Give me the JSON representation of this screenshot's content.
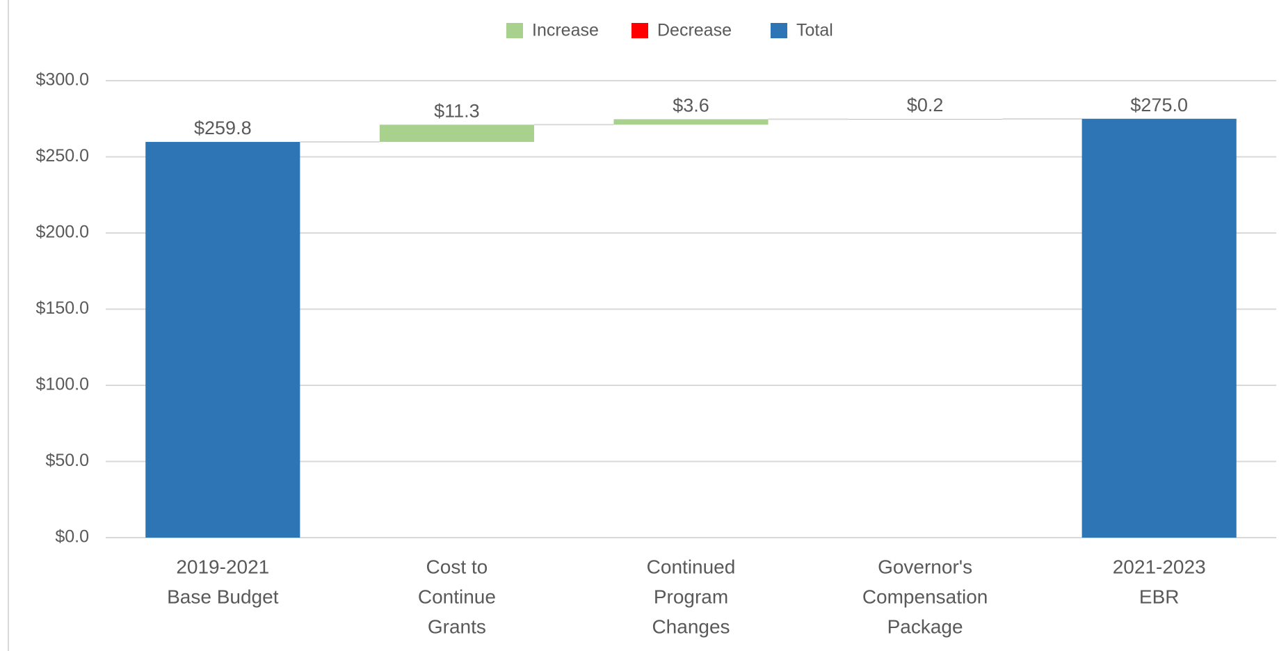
{
  "chart_data": {
    "type": "waterfall",
    "categories": [
      [
        "2019-2021",
        "Base Budget"
      ],
      [
        "Cost to",
        "Continue",
        "Grants"
      ],
      [
        "Continued",
        "Program",
        "Changes"
      ],
      [
        "Governor's",
        "Compensation",
        "Package"
      ],
      [
        "2021-2023",
        "EBR"
      ]
    ],
    "values": [
      259.8,
      11.3,
      3.6,
      0.2,
      275.0
    ],
    "value_labels": [
      "$259.8",
      "$11.3",
      "$3.6",
      "$0.2",
      "$275.0"
    ],
    "is_total": [
      true,
      false,
      false,
      false,
      true
    ],
    "legend": [
      {
        "name": "Increase",
        "color": "#a9d18e"
      },
      {
        "name": "Decrease",
        "color": "#ff0000"
      },
      {
        "name": "Total",
        "color": "#2e75b6"
      }
    ],
    "ylim": [
      0,
      300
    ],
    "yticks": [
      {
        "value": 0,
        "label": "$0.0"
      },
      {
        "value": 50,
        "label": "$50.0"
      },
      {
        "value": 100,
        "label": "$100.0"
      },
      {
        "value": 150,
        "label": "$150.0"
      },
      {
        "value": 200,
        "label": "$200.0"
      },
      {
        "value": 250,
        "label": "$250.0"
      },
      {
        "value": 300,
        "label": "$300.0"
      }
    ],
    "grid": true
  }
}
